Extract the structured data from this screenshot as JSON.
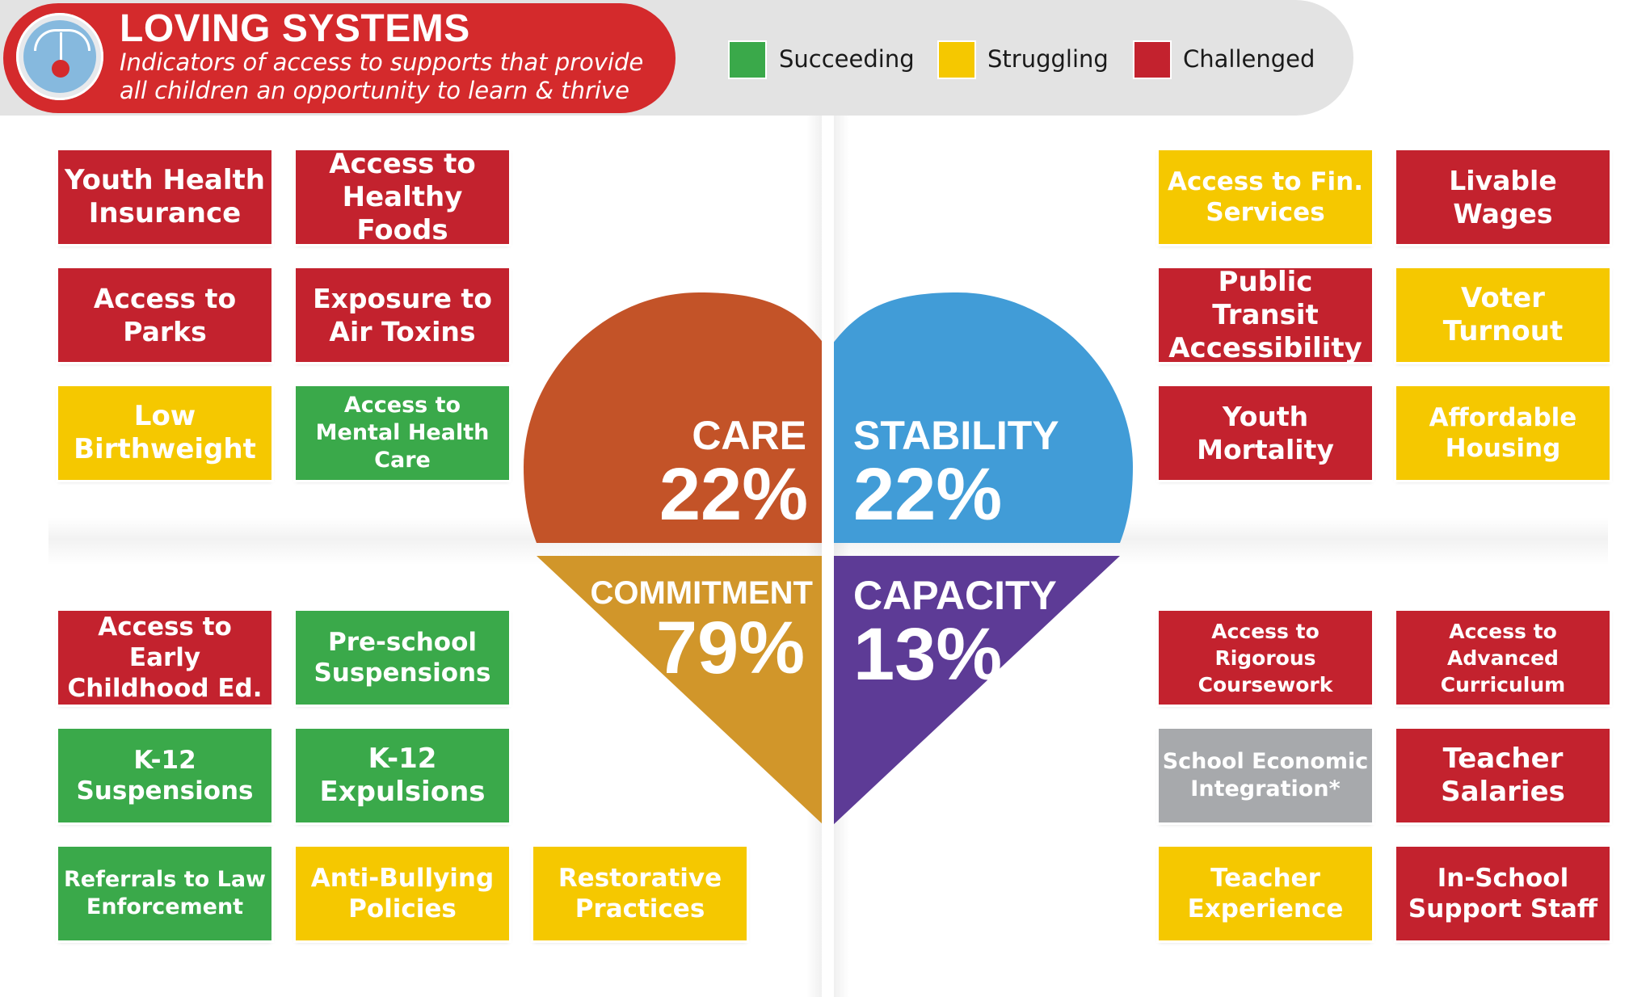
{
  "header": {
    "title": "LOVING SYSTEMS",
    "subtitle": "Indicators of access to supports that provide all children an opportunity to learn & thrive",
    "icon": "gauge-icon"
  },
  "legend": [
    {
      "label": "Succeeding",
      "color": "#3aa94a"
    },
    {
      "label": "Struggling",
      "color": "#f5c800"
    },
    {
      "label": "Challenged",
      "color": "#c3222e"
    }
  ],
  "colors": {
    "succeeding": "#3aa94a",
    "struggling": "#f5c800",
    "challenged": "#c3222e",
    "not_rated": "#a7a9ac",
    "care": "#c35328",
    "stability": "#419cd7",
    "commitment": "#d1962a",
    "capacity": "#5d3b96"
  },
  "quadrants": {
    "care": {
      "name": "CARE",
      "percent": "22%"
    },
    "stability": {
      "name": "STABILITY",
      "percent": "22%"
    },
    "commitment": {
      "name": "COMMITMENT",
      "percent": "79%"
    },
    "capacity": {
      "name": "CAPACITY",
      "percent": "13%"
    }
  },
  "indicators": {
    "care": [
      {
        "label": "Youth Health Insurance",
        "status": "challenged"
      },
      {
        "label": "Access to Healthy Foods",
        "status": "challenged"
      },
      {
        "label": "Access to Parks",
        "status": "challenged"
      },
      {
        "label": "Exposure to Air Toxins",
        "status": "challenged"
      },
      {
        "label": "Low Birthweight",
        "status": "struggling"
      },
      {
        "label": "Access to Mental Health Care",
        "status": "succeeding"
      }
    ],
    "stability": [
      {
        "label": "Access to Fin. Services",
        "status": "struggling"
      },
      {
        "label": "Livable Wages",
        "status": "challenged"
      },
      {
        "label": "Public Transit Accessibility",
        "status": "challenged"
      },
      {
        "label": "Voter Turnout",
        "status": "struggling"
      },
      {
        "label": "Youth Mortality",
        "status": "challenged"
      },
      {
        "label": "Affordable Housing",
        "status": "struggling"
      }
    ],
    "commitment": [
      {
        "label": "Access to Early Childhood Ed.",
        "status": "challenged"
      },
      {
        "label": "Pre-school Suspensions",
        "status": "succeeding"
      },
      {
        "label": "K-12 Suspensions",
        "status": "succeeding"
      },
      {
        "label": "K-12 Expulsions",
        "status": "succeeding"
      },
      {
        "label": "Referrals to Law Enforcement",
        "status": "succeeding"
      },
      {
        "label": "Anti-Bullying Policies",
        "status": "struggling"
      },
      {
        "label": "Restorative Practices",
        "status": "struggling"
      }
    ],
    "capacity": [
      {
        "label": "Access to Rigorous Coursework",
        "status": "challenged"
      },
      {
        "label": "Access to Advanced Curriculum",
        "status": "challenged"
      },
      {
        "label": "School Economic Integration*",
        "status": "not rated"
      },
      {
        "label": "Teacher Salaries",
        "status": "challenged"
      },
      {
        "label": "Teacher Experience",
        "status": "struggling"
      },
      {
        "label": "In-School Support Staff",
        "status": "challenged"
      }
    ]
  }
}
